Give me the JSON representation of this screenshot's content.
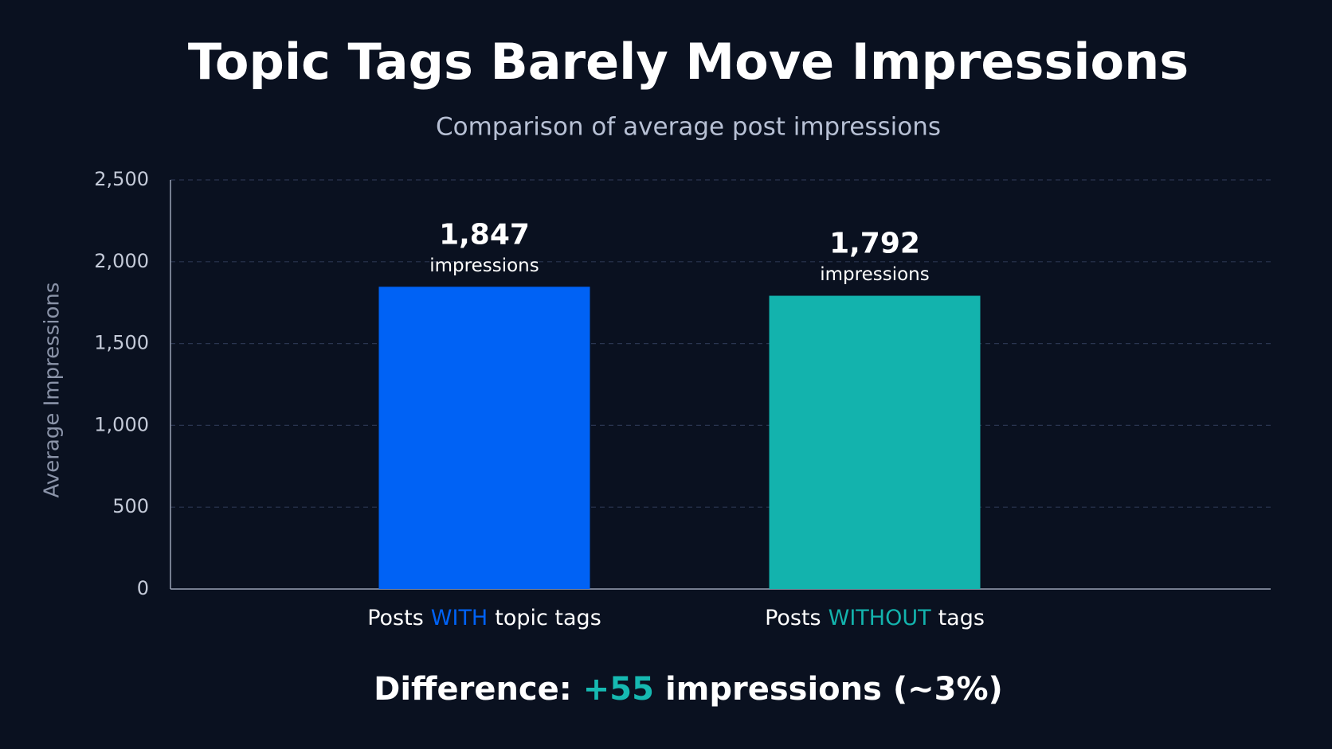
{
  "chart_data": {
    "type": "bar",
    "title": "Topic Tags Barely Move Impressions",
    "subtitle": "Comparison of average post impressions",
    "y_label": "Average Impressions",
    "categories": [
      [
        "Posts",
        "WITH",
        "topic tags"
      ],
      [
        "Posts",
        "WITHOUT",
        "tags"
      ]
    ],
    "values": [
      1847,
      1792
    ],
    "value_labels": [
      "1,847",
      "1,792"
    ],
    "value_unit": "impressions",
    "colors": [
      "#0062f5",
      "#13b3ad"
    ],
    "ylim": [
      0,
      2500
    ],
    "yticks": [
      0,
      500,
      {
        "value": 1000,
        "label": "1,000"
      },
      {
        "value": 1500,
        "label": "1,500"
      },
      {
        "value": 2000,
        "label": "2,000"
      },
      {
        "value": 2500,
        "label": "2,500"
      }
    ],
    "grid": true,
    "annotation": {
      "label": "Difference:",
      "value": "+55",
      "text": "impressions (~3%)"
    }
  }
}
